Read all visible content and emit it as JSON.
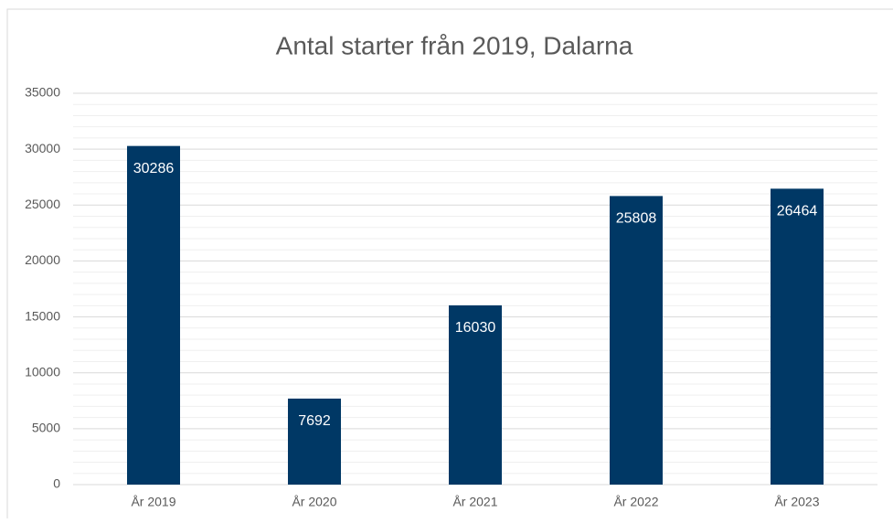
{
  "chart_data": {
    "type": "bar",
    "title": "Antal starter från 2019, Dalarna",
    "categories": [
      "År 2019",
      "År 2020",
      "År 2021",
      "År 2022",
      "År 2023"
    ],
    "values": [
      30286,
      7692,
      16030,
      25808,
      26464
    ],
    "color": "#003865",
    "ylim": [
      0,
      35000
    ],
    "yticks": [
      0,
      5000,
      10000,
      15000,
      20000,
      25000,
      30000,
      35000
    ],
    "grid": true,
    "minor_grid": true
  }
}
